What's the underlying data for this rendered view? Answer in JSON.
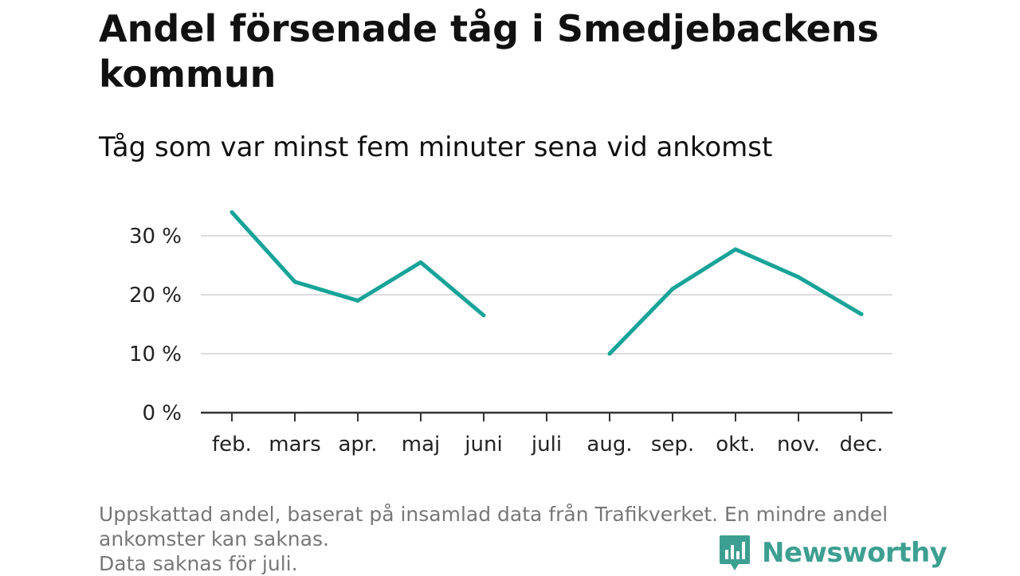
{
  "title": "Andel försenade tåg i Smedjebackens kommun",
  "subtitle": "Tåg som var minst fem minuter sena vid ankomst",
  "footnote": {
    "line1": "Uppskattad andel, baserat på insamlad data från Trafikverket. En mindre andel",
    "line2": "ankomster kan saknas.",
    "line3": "Data saknas för juli."
  },
  "brand": {
    "name": "Newsworthy",
    "icon": "newsworthy-logo-icon",
    "color": "#3d9f91"
  },
  "chart_data": {
    "type": "line",
    "categories": [
      "feb.",
      "mars",
      "apr.",
      "maj",
      "juni",
      "juli",
      "aug.",
      "sep.",
      "okt.",
      "nov.",
      "dec."
    ],
    "series": [
      {
        "values": [
          34,
          22.2,
          19,
          25.5,
          16.5,
          null,
          10,
          21,
          27.7,
          23,
          16.7
        ]
      }
    ],
    "y_ticks": [
      0,
      10,
      20,
      30
    ],
    "y_tick_labels": [
      "0 %",
      "10 %",
      "20 %",
      "30 %"
    ],
    "ylim": [
      0,
      35
    ],
    "grid": true,
    "legend": "none",
    "line_color": "#17a398",
    "grid_color": "#dddddd",
    "axis_color": "#333333"
  }
}
